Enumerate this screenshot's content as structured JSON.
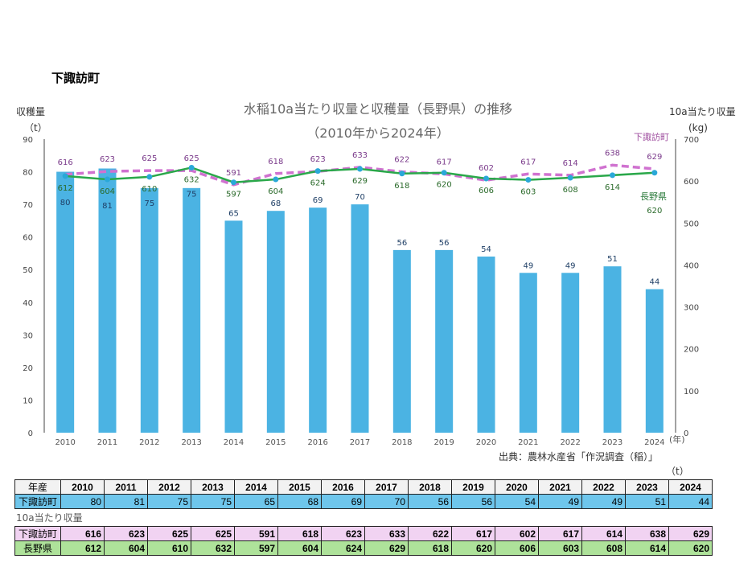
{
  "town": "下諏訪町",
  "chart_data": {
    "type": "bar+line",
    "title": "水稲10a当たり収量と収穫量（長野県）の推移",
    "subtitle": "（2010年から2024年）",
    "ylabel_left": "収穫量",
    "ylabel_left_unit": "（t）",
    "ylabel_right": "10a当たり収量",
    "ylabel_right_unit": "(kg)",
    "xunit": "(年)",
    "categories": [
      "2010",
      "2011",
      "2012",
      "2013",
      "2014",
      "2015",
      "2016",
      "2017",
      "2018",
      "2019",
      "2020",
      "2021",
      "2022",
      "2023",
      "2024"
    ],
    "ylim_left": [
      0,
      90
    ],
    "ylim_right": [
      0,
      700
    ],
    "yticks_left": [
      0,
      10,
      20,
      30,
      40,
      50,
      60,
      70,
      80,
      90
    ],
    "yticks_right": [
      0,
      100,
      200,
      300,
      400,
      500,
      600,
      700
    ],
    "grid": false,
    "series": [
      {
        "name": "収穫量",
        "type": "bar",
        "axis": "left",
        "color": "#4bb3e3",
        "values": [
          80,
          81,
          75,
          75,
          65,
          68,
          69,
          70,
          56,
          56,
          54,
          49,
          49,
          51,
          44
        ]
      },
      {
        "name": "下諏訪町",
        "type": "line-dashed",
        "axis": "right",
        "color": "#d072d0",
        "values": [
          616,
          623,
          625,
          625,
          591,
          618,
          623,
          633,
          622,
          617,
          602,
          617,
          614,
          638,
          629
        ]
      },
      {
        "name": "長野県",
        "type": "line",
        "axis": "right",
        "color": "#2aa84a",
        "values": [
          612,
          604,
          610,
          632,
          597,
          604,
          624,
          629,
          618,
          620,
          606,
          603,
          608,
          614,
          620
        ]
      }
    ],
    "source": "出典：農林水産省「作況調査（稲）」"
  },
  "table": {
    "unit": "（t）",
    "header_label": "年産",
    "harvest_label": "下諏訪町",
    "yield_caption": "10a当たり収量",
    "yield_town_label": "下諏訪町",
    "yield_pref_label": "長野県"
  }
}
